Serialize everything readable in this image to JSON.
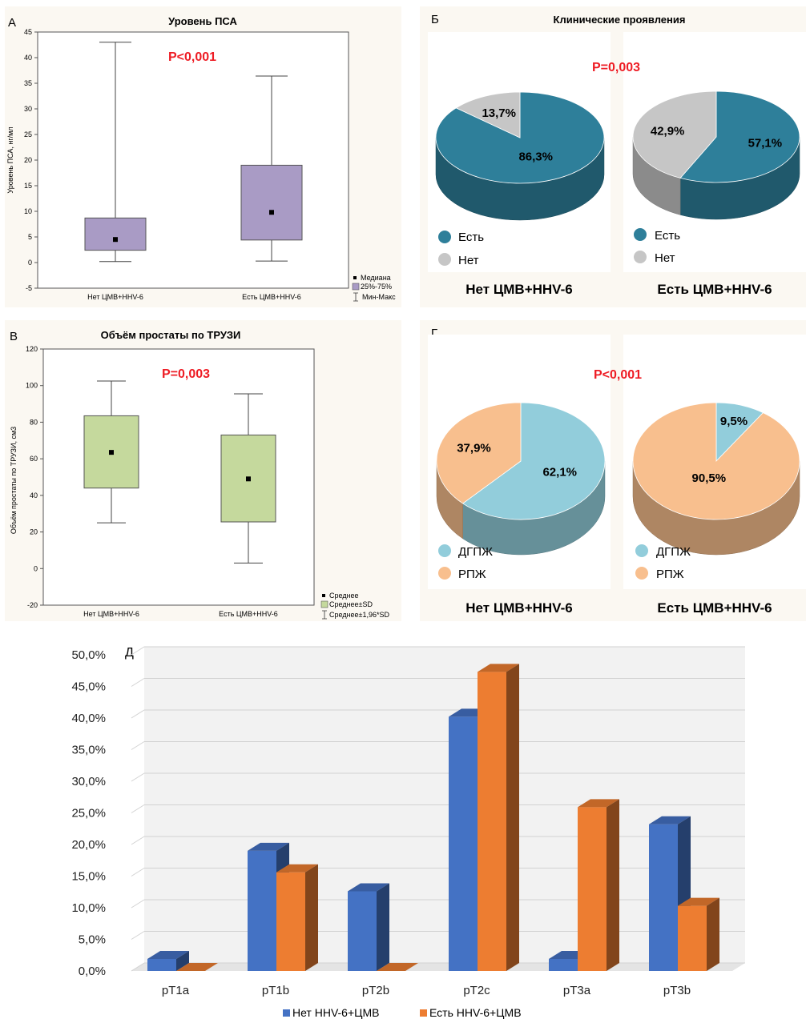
{
  "panel_a": {
    "letter": "А",
    "title": "Уровень ПСА",
    "p_value": "P<0,001",
    "ylabel": "Уровень ПСА, нг/мл",
    "yticks": [
      "45",
      "40",
      "35",
      "30",
      "25",
      "20",
      "15",
      "10",
      "5",
      "0",
      "-5"
    ],
    "legend": [
      "Медиана",
      "25%-75%",
      "Мин-Макс"
    ],
    "colors": {
      "box": "#a99bc5"
    }
  },
  "panel_b": {
    "letter": "Б",
    "title": "Клинические проявления",
    "p_value": "P=0,003",
    "legend": [
      "Есть",
      "Нет"
    ],
    "groups": [
      "Нет ЦМВ+HHV-6",
      "Есть ЦМВ+HHV-6"
    ],
    "colors": {
      "yes": "#2e7f9a",
      "no": "#c6c6c6"
    }
  },
  "panel_v": {
    "letter": "В",
    "title": "Объём простаты по ТРУЗИ",
    "p_value": "P=0,003",
    "ylabel": "Объём простаты по ТРУЗИ, см3",
    "yticks": [
      "120",
      "100",
      "80",
      "60",
      "40",
      "20",
      "0",
      "-20"
    ],
    "legend": [
      "Среднее",
      "Среднее±SD",
      "Среднее±1,96*SD"
    ],
    "colors": {
      "box": "#c5d99d"
    }
  },
  "panel_g": {
    "letter": "Г",
    "p_value": "P<0,001",
    "legend": [
      "ДГПЖ",
      "РПЖ"
    ],
    "groups": [
      "Нет ЦМВ+HHV-6",
      "Есть ЦМВ+HHV-6"
    ],
    "colors": {
      "dgpzh": "#92cddb",
      "rpzh": "#f8bf8e"
    }
  },
  "panel_d": {
    "letter": "Д",
    "yticks": [
      "50,0%",
      "45,0%",
      "40,0%",
      "35,0%",
      "30,0%",
      "25,0%",
      "20,0%",
      "15,0%",
      "10,0%",
      "5,0%",
      "0,0%"
    ],
    "colors": {
      "blue": "#4472c4",
      "orange": "#ed7d31"
    }
  },
  "chart_data": [
    {
      "type": "box",
      "title": "Уровень ПСА",
      "ylabel": "Уровень ПСА, нг/мл",
      "ylim": [
        -5,
        45
      ],
      "categories": [
        "Нет ЦМВ+HHV-6",
        "Есть ЦМВ+HHV-6"
      ],
      "min": [
        0.2,
        0.3
      ],
      "q1": [
        2.4,
        4.4
      ],
      "median": [
        4.5,
        9.8
      ],
      "q3": [
        8.7,
        19.0
      ],
      "max": [
        43.0,
        36.4
      ],
      "legend": [
        "Медиана",
        "25%-75%",
        "Мин-Макс"
      ]
    },
    {
      "type": "pie",
      "title": "Клинические проявления",
      "labels": [
        "Есть",
        "Нет"
      ],
      "groups": [
        {
          "name": "Нет ЦМВ+HHV-6",
          "values": [
            86.3,
            13.7
          ],
          "display": [
            "86,3%",
            "13,7%"
          ]
        },
        {
          "name": "Есть ЦМВ+HHV-6",
          "values": [
            57.1,
            42.9
          ],
          "display": [
            "57,1%",
            "42,9%"
          ]
        }
      ]
    },
    {
      "type": "box",
      "title": "Объём простаты по ТРУЗИ",
      "ylabel": "Объём простаты по ТРУЗИ, см3",
      "ylim": [
        -20,
        120
      ],
      "categories": [
        "Нет ЦМВ+HHV-6",
        "Есть ЦМВ+HHV-6"
      ],
      "mean": [
        63.5,
        49.0
      ],
      "sd_low": [
        44.0,
        25.5
      ],
      "sd_high": [
        83.5,
        73.0
      ],
      "ci_low": [
        25.0,
        3.0
      ],
      "ci_high": [
        102.5,
        95.5
      ],
      "legend": [
        "Среднее",
        "Среднее±SD",
        "Среднее±1,96*SD"
      ]
    },
    {
      "type": "pie",
      "labels": [
        "ДГПЖ",
        "РПЖ"
      ],
      "groups": [
        {
          "name": "Нет ЦМВ+HHV-6",
          "values": [
            62.1,
            37.9
          ],
          "display": [
            "62,1%",
            "37,9%"
          ]
        },
        {
          "name": "Есть ЦМВ+HHV-6",
          "values": [
            9.5,
            90.5
          ],
          "display": [
            "9,5%",
            "90,5%"
          ]
        }
      ]
    },
    {
      "type": "bar",
      "categories": [
        "pT1a",
        "pT1b",
        "pT2b",
        "pT2c",
        "pT3a",
        "pT3b"
      ],
      "ylim": [
        0,
        50
      ],
      "series": [
        {
          "name": "Нет HHV-6+ЦМВ",
          "values": [
            1.9,
            19.0,
            12.6,
            40.2,
            1.9,
            23.2
          ]
        },
        {
          "name": "Есть HHV-6+ЦМВ",
          "values": [
            0,
            15.6,
            0,
            47.3,
            25.9,
            10.3
          ]
        }
      ]
    }
  ]
}
